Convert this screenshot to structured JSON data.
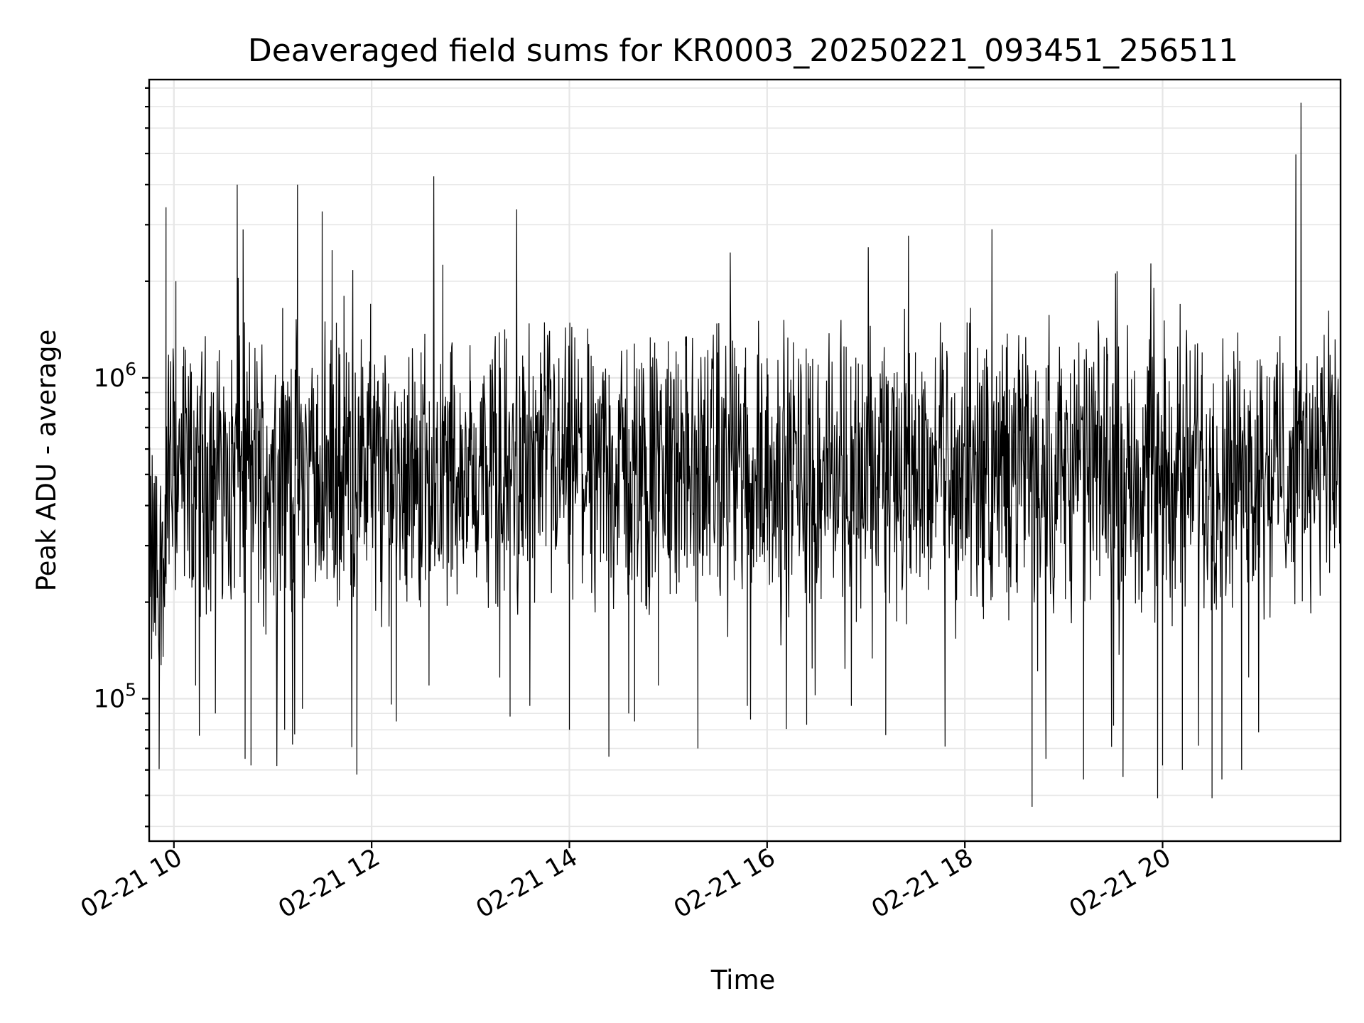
{
  "chart_data": {
    "type": "line",
    "title": "Deaveraged field sums for KR0003_20250221_093451_256511",
    "xlabel": "Time",
    "ylabel": "Peak ADU - average",
    "yscale": "log",
    "x_unit": "hour of day 2025-02-21",
    "xlim": [
      9.75,
      21.8
    ],
    "ylim": [
      36000,
      8500000
    ],
    "x_ticks": [
      {
        "value": 10,
        "label": "02-21 10"
      },
      {
        "value": 12,
        "label": "02-21 12"
      },
      {
        "value": 14,
        "label": "02-21 14"
      },
      {
        "value": 16,
        "label": "02-21 16"
      },
      {
        "value": 18,
        "label": "02-21 18"
      },
      {
        "value": 20,
        "label": "02-21 20"
      }
    ],
    "y_ticks": [
      {
        "value": 100000,
        "base": "10",
        "exp": "5"
      },
      {
        "value": 1000000,
        "base": "10",
        "exp": "6"
      }
    ],
    "grid": true,
    "line_color": "#000000",
    "series": [
      {
        "name": "",
        "baseline_center": 520000,
        "points": [
          [
            9.75,
            230000
          ],
          [
            9.8,
            470000
          ],
          [
            9.85,
            130000
          ],
          [
            9.92,
            3400000
          ],
          [
            9.95,
            330000
          ],
          [
            10.0,
            700000
          ],
          [
            10.02,
            2000000
          ],
          [
            10.1,
            1250000
          ],
          [
            10.2,
            240000
          ],
          [
            10.22,
            110000
          ],
          [
            10.4,
            900000
          ],
          [
            10.42,
            90000
          ],
          [
            10.65,
            2050000
          ],
          [
            10.64,
            4000000
          ],
          [
            10.7,
            2900000
          ],
          [
            10.72,
            65000
          ],
          [
            10.78,
            62000
          ],
          [
            11.1,
            1650000
          ],
          [
            11.12,
            80000
          ],
          [
            11.2,
            72000
          ],
          [
            11.25,
            4000000
          ],
          [
            11.3,
            93000
          ],
          [
            11.5,
            3300000
          ],
          [
            11.6,
            2500000
          ],
          [
            11.72,
            1800000
          ],
          [
            11.8,
            103000
          ],
          [
            11.85,
            58000
          ],
          [
            11.99,
            1700000
          ],
          [
            12.2,
            96000
          ],
          [
            12.25,
            85000
          ],
          [
            12.5,
            1200000
          ],
          [
            12.58,
            110000
          ],
          [
            12.72,
            2250000
          ],
          [
            13.0,
            980000
          ],
          [
            13.2,
            1100000
          ],
          [
            13.4,
            88000
          ],
          [
            13.6,
            95000
          ],
          [
            13.8,
            1400000
          ],
          [
            14.0,
            80000
          ],
          [
            14.4,
            66000
          ],
          [
            14.6,
            90000
          ],
          [
            14.66,
            85000
          ],
          [
            14.9,
            110000
          ],
          [
            15.0,
            1300000
          ],
          [
            15.3,
            70000
          ],
          [
            15.5,
            1200000
          ],
          [
            15.8,
            95000
          ],
          [
            16.0,
            1150000
          ],
          [
            16.4,
            83000
          ],
          [
            16.8,
            1250000
          ],
          [
            17.2,
            77000
          ],
          [
            17.5,
            1200000
          ],
          [
            17.8,
            71000
          ],
          [
            18.0,
            1200000
          ],
          [
            18.2,
            1150000
          ],
          [
            18.5,
            1000000
          ],
          [
            18.68,
            46000
          ],
          [
            18.82,
            65000
          ],
          [
            19.2,
            56000
          ],
          [
            19.6,
            57000
          ],
          [
            19.95,
            49000
          ],
          [
            20.0,
            62000
          ],
          [
            20.2,
            60000
          ],
          [
            20.4,
            1200000
          ],
          [
            20.5,
            49000
          ],
          [
            20.6,
            56000
          ],
          [
            20.8,
            60000
          ],
          [
            21.0,
            900000
          ],
          [
            21.15,
            1100000
          ],
          [
            21.4,
            7200000
          ],
          [
            21.5,
            620000
          ],
          [
            21.6,
            700000
          ],
          [
            21.7,
            650000
          ],
          [
            21.8,
            600000
          ]
        ]
      }
    ]
  }
}
